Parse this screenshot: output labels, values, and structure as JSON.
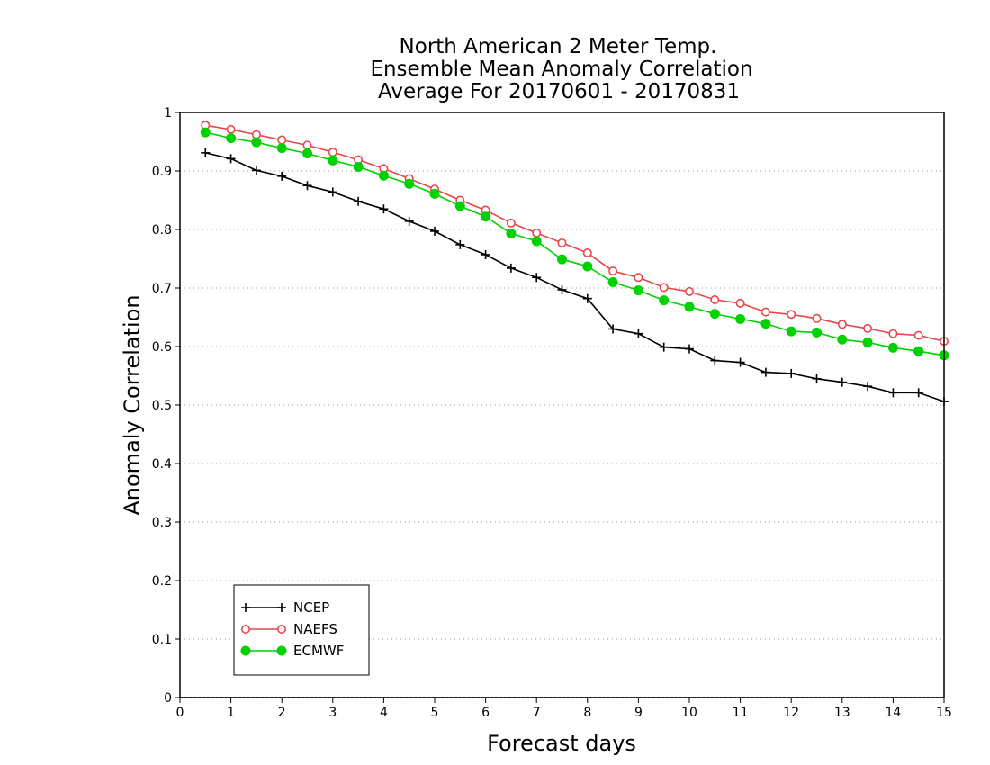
{
  "chart_data": {
    "type": "line",
    "title_lines": [
      "North American 2 Meter Temp.",
      "Ensemble Mean Anomaly Correlation",
      "Average For 20170601 - 20170831"
    ],
    "xlabel": "Forecast days",
    "ylabel": "Anomaly Correlation",
    "xlim": [
      0,
      15
    ],
    "ylim": [
      0,
      1
    ],
    "x_ticks": [
      "0",
      "1",
      "2",
      "3",
      "4",
      "5",
      "6",
      "7",
      "8",
      "9",
      "10",
      "11",
      "12",
      "13",
      "14",
      "15"
    ],
    "y_ticks": [
      "0",
      "0.1",
      "0.2",
      "0.3",
      "0.4",
      "0.5",
      "0.6",
      "0.7",
      "0.8",
      "0.9",
      "1"
    ],
    "grid": "dotted horizontal",
    "legend_position": "bottom-left",
    "x": [
      0.5,
      1,
      1.5,
      2,
      2.5,
      3,
      3.5,
      4,
      4.5,
      5,
      5.5,
      6,
      6.5,
      7,
      7.5,
      8,
      8.5,
      9,
      9.5,
      10,
      10.5,
      11,
      11.5,
      12,
      12.5,
      13,
      13.5,
      14,
      14.5,
      15
    ],
    "series": [
      {
        "name": "NCEP",
        "color": "#000000",
        "marker": "plus",
        "values": [
          0.931,
          0.921,
          0.901,
          0.891,
          0.875,
          0.864,
          0.848,
          0.835,
          0.814,
          0.797,
          0.774,
          0.757,
          0.734,
          0.718,
          0.697,
          0.682,
          0.63,
          0.622,
          0.599,
          0.596,
          0.576,
          0.573,
          0.556,
          0.554,
          0.545,
          0.539,
          0.532,
          0.521,
          0.521,
          0.506
        ]
      },
      {
        "name": "NAEFS",
        "color": "#e8474a",
        "marker": "open-circle",
        "values": [
          0.978,
          0.971,
          0.962,
          0.953,
          0.944,
          0.932,
          0.919,
          0.904,
          0.887,
          0.869,
          0.85,
          0.833,
          0.811,
          0.794,
          0.777,
          0.76,
          0.729,
          0.718,
          0.701,
          0.694,
          0.68,
          0.674,
          0.659,
          0.655,
          0.648,
          0.638,
          0.631,
          0.622,
          0.619,
          0.609
        ]
      },
      {
        "name": "ECMWF",
        "color": "#00d200",
        "marker": "filled-circle",
        "values": [
          0.966,
          0.956,
          0.949,
          0.939,
          0.93,
          0.918,
          0.907,
          0.892,
          0.878,
          0.861,
          0.84,
          0.822,
          0.793,
          0.78,
          0.749,
          0.737,
          0.71,
          0.696,
          0.679,
          0.668,
          0.656,
          0.647,
          0.639,
          0.626,
          0.624,
          0.612,
          0.607,
          0.598,
          0.592,
          0.585
        ]
      }
    ]
  }
}
